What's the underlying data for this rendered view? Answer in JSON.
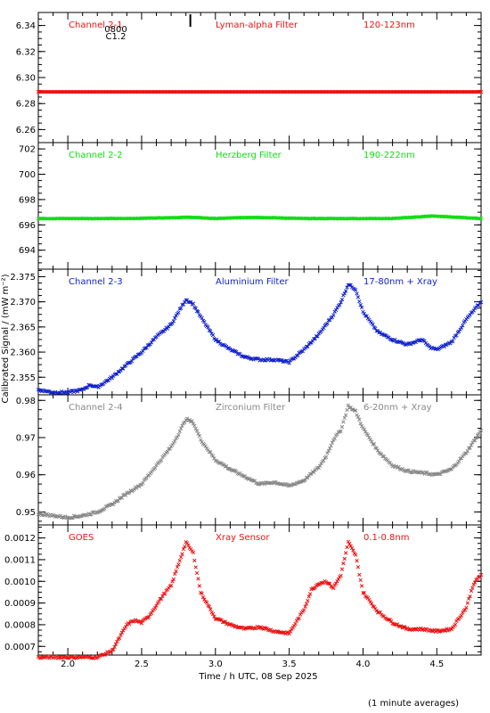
{
  "ylabel": "Calibrated Signal / (mW m⁻²)",
  "xlabel": "Time / h UTC, 08 Sep 2025",
  "footnote": "(1 minute averages)",
  "marker_label": "0800",
  "flare_label": "C1.2",
  "colors": {
    "red": "#ee1111",
    "green": "#11dd11",
    "blue": "#1122cc",
    "gray": "#888888",
    "axis": "#000000"
  },
  "chart_data": [
    {
      "type": "scatter",
      "channel": "Channel 2-1",
      "filter": "Lyman-alpha Filter",
      "band": "120-123nm",
      "color": "#ee1111",
      "xlim": [
        1.8,
        4.8
      ],
      "ylim": [
        6.25,
        6.35
      ],
      "yticks": [
        "6.26",
        "6.28",
        "6.30",
        "6.32",
        "6.34"
      ],
      "series": [
        {
          "x": [
            1.8,
            2.4,
            3.0,
            3.6,
            4.2,
            4.8
          ],
          "y": [
            6.289,
            6.289,
            6.289,
            6.289,
            6.289,
            6.289
          ]
        }
      ]
    },
    {
      "type": "scatter",
      "channel": "Channel 2-2",
      "filter": "Herzberg Filter",
      "band": "190-222nm",
      "color": "#11dd11",
      "xlim": [
        1.8,
        4.8
      ],
      "ylim": [
        692.5,
        702.5
      ],
      "yticks": [
        "694",
        "696",
        "698",
        "700",
        "702"
      ],
      "series": [
        {
          "x": [
            1.8,
            2.4,
            2.83,
            3.0,
            3.25,
            3.6,
            4.2,
            4.47,
            4.8
          ],
          "y": [
            696.5,
            696.5,
            696.6,
            696.5,
            696.6,
            696.5,
            696.5,
            696.7,
            696.5
          ]
        }
      ]
    },
    {
      "type": "scatter",
      "channel": "Channel 2-3",
      "filter": "Aluminium Filter",
      "band": "17-80nm + Xray",
      "color": "#1122cc",
      "xlim": [
        1.8,
        4.8
      ],
      "ylim": [
        2.3515,
        2.3765
      ],
      "yticks": [
        "2.355",
        "2.360",
        "2.365",
        "2.370",
        "2.375"
      ],
      "series": [
        {
          "x": [
            1.8,
            1.9,
            2.0,
            2.1,
            2.15,
            2.2,
            2.3,
            2.4,
            2.5,
            2.6,
            2.7,
            2.75,
            2.8,
            2.85,
            2.9,
            3.0,
            3.1,
            3.2,
            3.3,
            3.4,
            3.5,
            3.6,
            3.7,
            3.75,
            3.8,
            3.85,
            3.9,
            3.95,
            4.0,
            4.1,
            4.2,
            4.3,
            4.4,
            4.45,
            4.5,
            4.6,
            4.7,
            4.8
          ],
          "y": [
            2.3525,
            2.352,
            2.352,
            2.3525,
            2.3535,
            2.353,
            2.355,
            2.3575,
            2.36,
            2.363,
            2.3655,
            2.368,
            2.3705,
            2.3695,
            2.367,
            2.3625,
            2.3605,
            2.359,
            2.3585,
            2.3585,
            2.358,
            2.3605,
            2.3635,
            2.3655,
            2.3675,
            2.37,
            2.3735,
            2.3725,
            2.368,
            2.364,
            2.3625,
            2.3615,
            2.3625,
            2.361,
            2.3605,
            2.362,
            2.3665,
            2.37
          ]
        }
      ]
    },
    {
      "type": "scatter",
      "channel": "Channel 2-4",
      "filter": "Zirconium Filter",
      "band": "6-20nm + Xray",
      "color": "#888888",
      "xlim": [
        1.8,
        4.8
      ],
      "ylim": [
        0.9465,
        0.9815
      ],
      "yticks": [
        "0.95",
        "0.96",
        "0.97",
        "0.98"
      ],
      "series": [
        {
          "x": [
            1.8,
            1.9,
            2.0,
            2.1,
            2.2,
            2.3,
            2.4,
            2.5,
            2.6,
            2.7,
            2.75,
            2.8,
            2.85,
            2.9,
            3.0,
            3.1,
            3.2,
            3.3,
            3.4,
            3.5,
            3.6,
            3.7,
            3.75,
            3.8,
            3.85,
            3.9,
            3.95,
            4.0,
            4.1,
            4.2,
            4.3,
            4.4,
            4.5,
            4.6,
            4.7,
            4.8
          ],
          "y": [
            0.9495,
            0.949,
            0.9485,
            0.949,
            0.95,
            0.952,
            0.955,
            0.9575,
            0.9625,
            0.9675,
            0.971,
            0.975,
            0.974,
            0.9695,
            0.964,
            0.9615,
            0.9595,
            0.9575,
            0.958,
            0.957,
            0.9585,
            0.962,
            0.965,
            0.9695,
            0.972,
            0.9785,
            0.977,
            0.9725,
            0.9665,
            0.9625,
            0.961,
            0.9605,
            0.96,
            0.9615,
            0.966,
            0.972
          ]
        }
      ]
    },
    {
      "type": "scatter",
      "channel": "GOES",
      "filter": "Xray Sensor",
      "band": "0.1-0.8nm",
      "color": "#ee1111",
      "xlim": [
        1.8,
        4.8
      ],
      "ylim": [
        0.00066,
        0.00126
      ],
      "yticks": [
        "0.0007",
        "0.0008",
        "0.0009",
        "0.0010",
        "0.0011",
        "0.0012"
      ],
      "series": [
        {
          "x": [
            1.8,
            1.9,
            2.0,
            2.1,
            2.2,
            2.3,
            2.35,
            2.4,
            2.45,
            2.5,
            2.55,
            2.6,
            2.65,
            2.7,
            2.75,
            2.8,
            2.85,
            2.9,
            3.0,
            3.1,
            3.2,
            3.3,
            3.4,
            3.5,
            3.6,
            3.65,
            3.7,
            3.75,
            3.8,
            3.85,
            3.9,
            3.95,
            4.0,
            4.1,
            4.2,
            4.3,
            4.4,
            4.5,
            4.6,
            4.7,
            4.75,
            4.8
          ],
          "y": [
            0.00065,
            0.00065,
            0.00065,
            0.00065,
            0.00065,
            0.00068,
            0.00074,
            0.0008,
            0.00082,
            0.00081,
            0.00084,
            0.00089,
            0.00094,
            0.00098,
            0.00108,
            0.00118,
            0.00113,
            0.00095,
            0.00083,
            0.0008,
            0.00078,
            0.00079,
            0.00077,
            0.00076,
            0.00087,
            0.00096,
            0.00099,
            0.001,
            0.00097,
            0.00103,
            0.00118,
            0.00112,
            0.00095,
            0.00086,
            0.00081,
            0.00078,
            0.00078,
            0.00077,
            0.00078,
            0.00088,
            0.00099,
            0.00103
          ]
        }
      ]
    }
  ],
  "xticks": [
    "2.0",
    "2.5",
    "3.0",
    "3.5",
    "4.0",
    "4.5"
  ]
}
